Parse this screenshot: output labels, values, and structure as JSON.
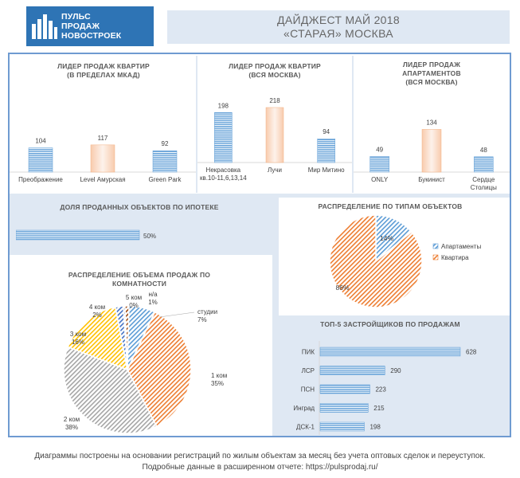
{
  "logo": {
    "lines": [
      "ПУЛЬС",
      "ПРОДАЖ",
      "НОВОСТРОЕК"
    ]
  },
  "header": {
    "line1": "ДАЙДЖЕСТ МАЙ 2018",
    "line2": "«СТАРАЯ» МОСКВА"
  },
  "colors": {
    "accent": "#2e74b5",
    "band": "#dfe8f3",
    "blue_bar": "#5b9bd5",
    "peach_bar": "#fbe5d6",
    "orange": "#ed7d31",
    "gray": "#a5a5a5",
    "yellow": "#ffc000"
  },
  "footer": {
    "line1": "Диаграммы построены на основании регистраций по жилым объектам за месяц без учета оптовых сделок и переуступок.",
    "line2": "Подробные данные в расширенном отчете: https://pulsprodaj.ru/"
  },
  "chart_data": [
    {
      "type": "bar",
      "title": "ЛИДЕР ПРОДАЖ  КВАРТИР (В ПРЕДЕЛАХ МКАД)",
      "title_lines": [
        "ЛИДЕР ПРОДАЖ  КВАРТИР",
        "(В ПРЕДЕЛАХ МКАД)"
      ],
      "categories": [
        "Преображение",
        "Level Амурская",
        "Green Park"
      ],
      "values": [
        104,
        117,
        92
      ],
      "highlight_index": 1
    },
    {
      "type": "bar",
      "title": "ЛИДЕР ПРОДАЖ  КВАРТИР (ВСЯ МОСКВА)",
      "title_lines": [
        "ЛИДЕР ПРОДАЖ  КВАРТИР",
        "(ВСЯ МОСКВА)"
      ],
      "categories": [
        "Некрасовка кв.10-11,6,13,14",
        "Лучи",
        "Мир Митино"
      ],
      "category_lines": [
        [
          "Некрасовка",
          "кв.10-11,6,13,14"
        ],
        [
          "Лучи"
        ],
        [
          "Мир Митино"
        ]
      ],
      "values": [
        198,
        218,
        94
      ],
      "highlight_index": 1
    },
    {
      "type": "bar",
      "title": "ЛИДЕР ПРОДАЖ АПАРТАМЕНТОВ (ВСЯ МОСКВА)",
      "title_lines": [
        "ЛИДЕР ПРОДАЖ",
        "АПАРТАМЕНТОВ",
        "(ВСЯ МОСКВА)"
      ],
      "categories": [
        "ONLY",
        "Букинист",
        "Сердце Столицы"
      ],
      "category_lines": [
        [
          "ONLY"
        ],
        [
          "Букинист"
        ],
        [
          "Сердце",
          "Столицы"
        ]
      ],
      "values": [
        49,
        134,
        48
      ],
      "highlight_index": 1
    },
    {
      "type": "bar",
      "title": "ДОЛЯ ПРОДАННЫХ ОБЪЕКТОВ ПО ИПОТЕКЕ",
      "orientation": "horizontal",
      "values": [
        50
      ],
      "value_labels": [
        "50%"
      ],
      "xlim": [
        0,
        100
      ]
    },
    {
      "type": "pie",
      "title": "РАСПРЕДЕЛЕНИЕ ПО ТИПАМ ОБЪЕКТОВ",
      "categories": [
        "Апартаменты",
        "Квартира"
      ],
      "values": [
        14,
        86
      ],
      "value_labels": [
        "14%",
        "86%"
      ],
      "legend": "right"
    },
    {
      "type": "pie",
      "title": "РАСПРЕДЕЛЕНИЕ ОБЪЕМА ПРОДАЖ ПО КОМНАТНОСТИ",
      "title_lines": [
        "РАСПРЕДЕЛЕНИЕ ОБЪЕМА ПРОДАЖ ПО",
        "КОМНАТНОСТИ"
      ],
      "categories": [
        "студии",
        "1 ком",
        "2 ком",
        "3 ком",
        "4 ком",
        "5 ком",
        "н/а"
      ],
      "values": [
        7,
        35,
        38,
        16,
        2,
        0,
        1
      ],
      "value_labels": [
        "7%",
        "35%",
        "38%",
        "16%",
        "2%",
        "0%",
        "1%"
      ]
    },
    {
      "type": "bar",
      "orientation": "horizontal",
      "title": "ТОП-5 ЗАСТРОЙЩИКОВ ПО ПРОДАЖАМ",
      "categories": [
        "ПИК",
        "ЛСР",
        "ПСН",
        "Инград",
        "ДСК-1"
      ],
      "values": [
        628,
        290,
        223,
        215,
        198
      ]
    }
  ]
}
